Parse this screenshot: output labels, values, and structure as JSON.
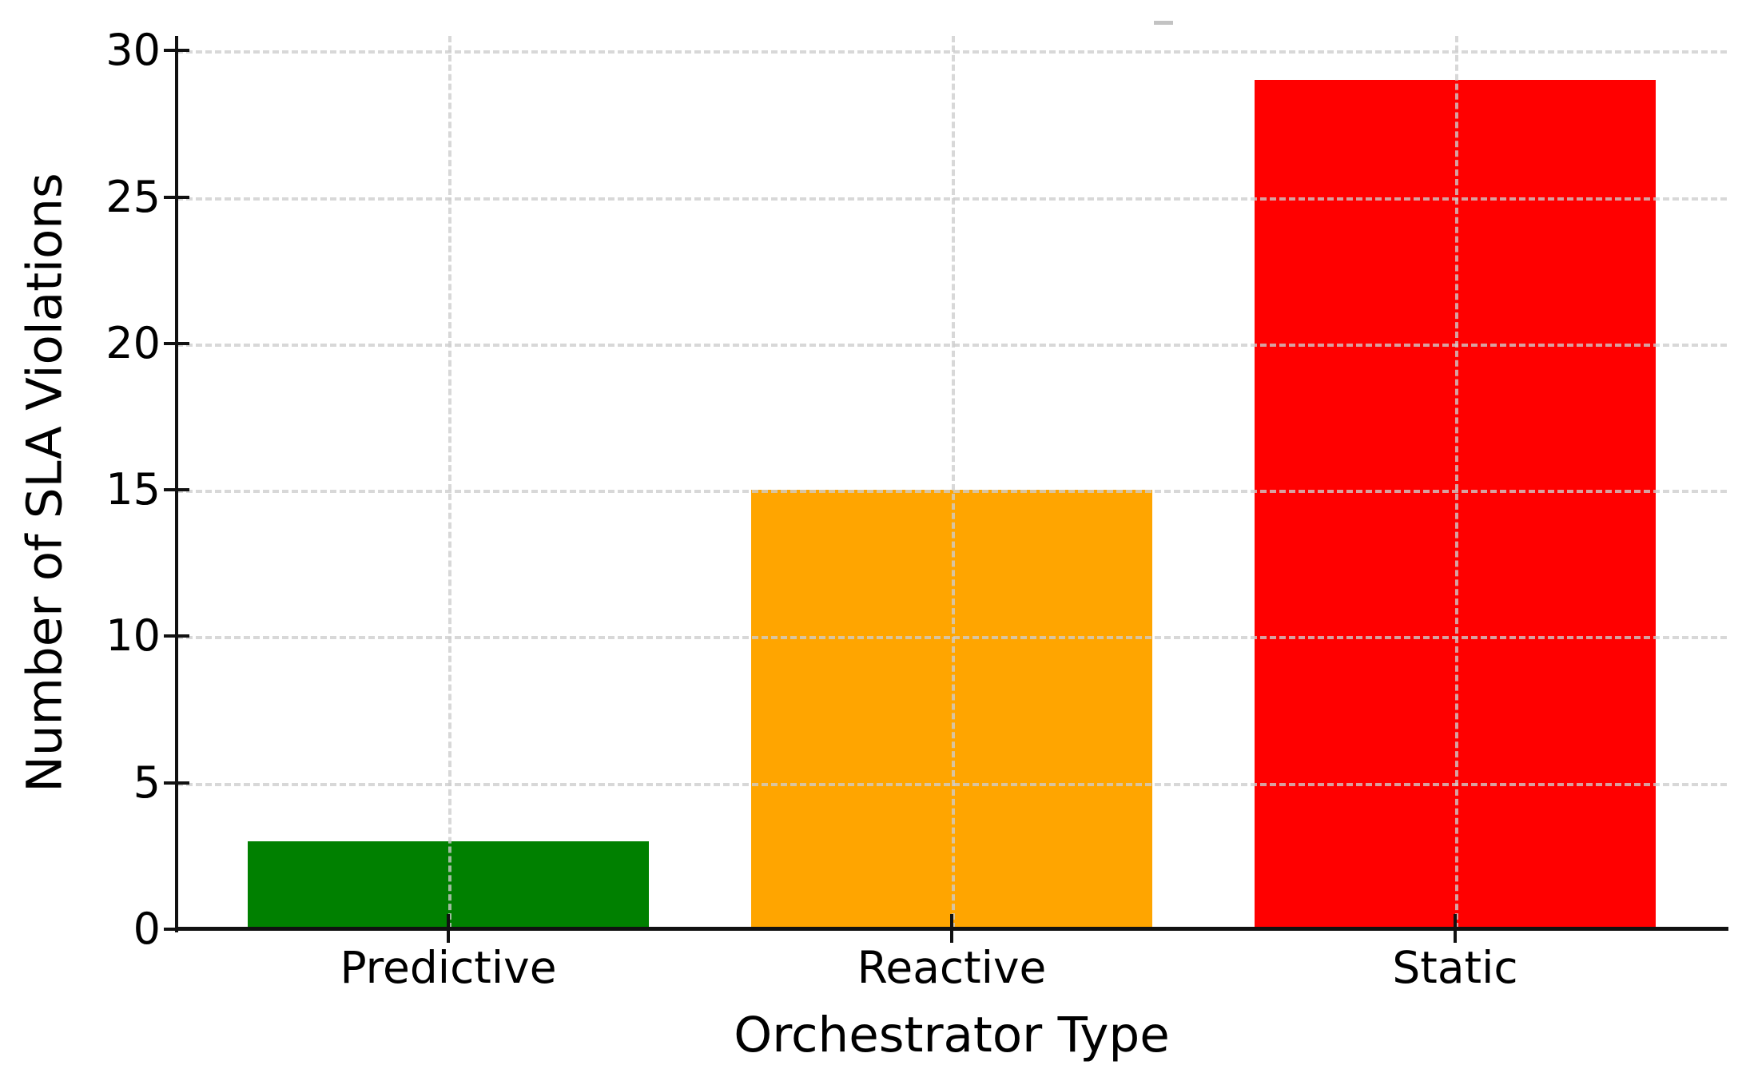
{
  "chart_data": {
    "type": "bar",
    "title": "",
    "xlabel": "Orchestrator Type",
    "ylabel": "Number of SLA Violations",
    "categories": [
      "Predictive",
      "Reactive",
      "Static"
    ],
    "values": [
      3,
      15,
      29
    ],
    "bar_colors": [
      "#008000",
      "#FFA500",
      "#FF0000"
    ],
    "yticks": [
      0,
      5,
      10,
      15,
      20,
      25,
      30
    ],
    "ylim": [
      0,
      30.5
    ],
    "grid": "dashed light-gray horizontal and vertical gridlines drawn above bars",
    "legend": "none",
    "background_color": "#ffffff",
    "spine_color": "#111111"
  }
}
